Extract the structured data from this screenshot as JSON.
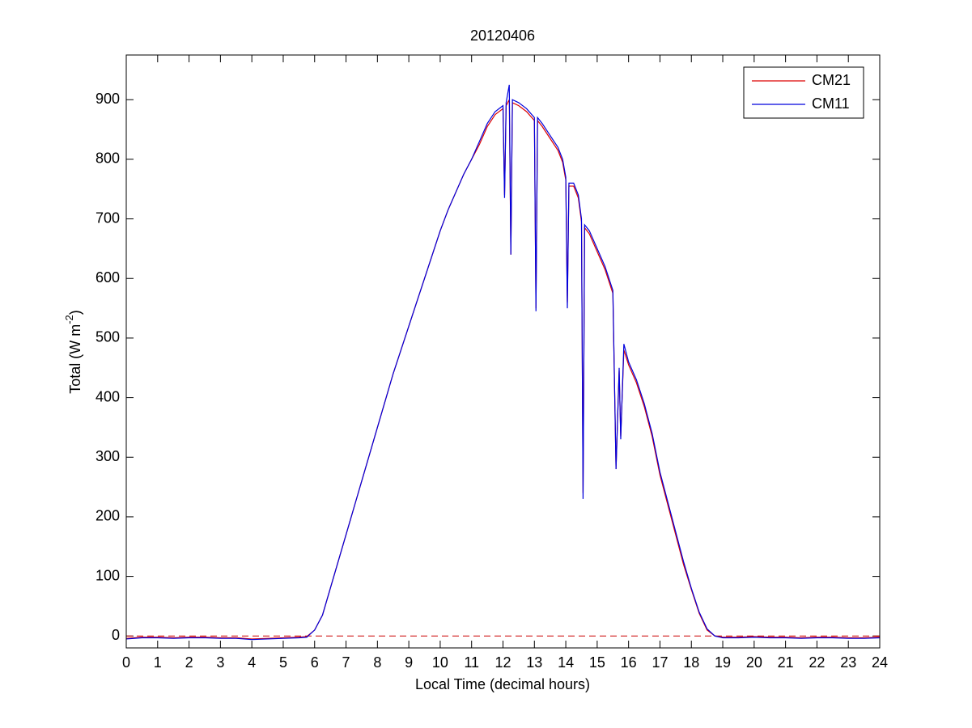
{
  "chart_data": {
    "type": "line",
    "title": "20120406",
    "xlabel": "Local Time (decimal hours)",
    "ylabel": {
      "text": "Total (W m",
      "superscript": "-2",
      "suffix": ")"
    },
    "xlim": [
      0,
      24
    ],
    "xticks": [
      0,
      1,
      2,
      3,
      4,
      5,
      6,
      7,
      8,
      9,
      10,
      11,
      12,
      13,
      14,
      15,
      16,
      17,
      18,
      19,
      20,
      21,
      22,
      23,
      24
    ],
    "ylim": [
      -20,
      975
    ],
    "yticks": [
      0,
      100,
      200,
      300,
      400,
      500,
      600,
      700,
      800,
      900
    ],
    "hline": 0,
    "hline_color": "#cc0000",
    "legend": "upper-right",
    "x": [
      0,
      0.5,
      1,
      1.5,
      2,
      2.5,
      3,
      3.5,
      4,
      4.5,
      5,
      5.5,
      5.75,
      6,
      6.25,
      6.5,
      6.75,
      7,
      7.25,
      7.5,
      7.75,
      8,
      8.25,
      8.5,
      8.75,
      9,
      9.25,
      9.5,
      9.75,
      10,
      10.25,
      10.5,
      10.75,
      11,
      11.25,
      11.5,
      11.75,
      12,
      12.05,
      12.1,
      12.2,
      12.25,
      12.3,
      12.5,
      12.75,
      13,
      13.05,
      13.1,
      13.25,
      13.5,
      13.75,
      13.9,
      14,
      14.05,
      14.1,
      14.25,
      14.4,
      14.5,
      14.55,
      14.6,
      14.75,
      15,
      15.25,
      15.5,
      15.6,
      15.7,
      15.75,
      15.85,
      16,
      16.25,
      16.5,
      16.75,
      17,
      17.25,
      17.5,
      17.75,
      18,
      18.25,
      18.5,
      18.75,
      19,
      19.5,
      20,
      20.5,
      21,
      21.5,
      22,
      22.5,
      23,
      23.5,
      24
    ],
    "series": [
      {
        "name": "CM21",
        "color": "#dd0000",
        "values": [
          -4,
          -2,
          -2,
          -3,
          -2,
          -2,
          -3,
          -3,
          -5,
          -4,
          -3,
          -2,
          -1,
          10,
          35,
          80,
          125,
          170,
          215,
          260,
          305,
          350,
          395,
          440,
          480,
          520,
          560,
          600,
          640,
          680,
          715,
          745,
          775,
          800,
          825,
          855,
          875,
          885,
          740,
          890,
          900,
          640,
          895,
          890,
          880,
          865,
          550,
          865,
          855,
          835,
          815,
          795,
          765,
          560,
          755,
          755,
          735,
          695,
          240,
          685,
          675,
          645,
          615,
          575,
          280,
          445,
          335,
          480,
          455,
          425,
          385,
          335,
          270,
          220,
          170,
          120,
          78,
          38,
          10,
          0,
          -2,
          -2,
          -1,
          -2,
          -2,
          -3,
          -2,
          -2,
          -3,
          -3,
          -2
        ]
      },
      {
        "name": "CM11",
        "color": "#0000dd",
        "values": [
          -5,
          -3,
          -3,
          -4,
          -3,
          -3,
          -4,
          -4,
          -6,
          -5,
          -4,
          -3,
          -2,
          10,
          35,
          80,
          125,
          170,
          215,
          260,
          305,
          350,
          395,
          440,
          480,
          520,
          560,
          600,
          640,
          680,
          715,
          745,
          775,
          800,
          830,
          860,
          880,
          890,
          735,
          895,
          925,
          640,
          900,
          895,
          885,
          870,
          545,
          870,
          860,
          840,
          820,
          800,
          770,
          550,
          760,
          760,
          740,
          700,
          230,
          690,
          680,
          650,
          620,
          580,
          280,
          450,
          330,
          490,
          460,
          430,
          390,
          340,
          275,
          225,
          175,
          125,
          80,
          40,
          12,
          0,
          -3,
          -3,
          -2,
          -3,
          -3,
          -4,
          -3,
          -3,
          -4,
          -4,
          -3
        ]
      }
    ]
  }
}
